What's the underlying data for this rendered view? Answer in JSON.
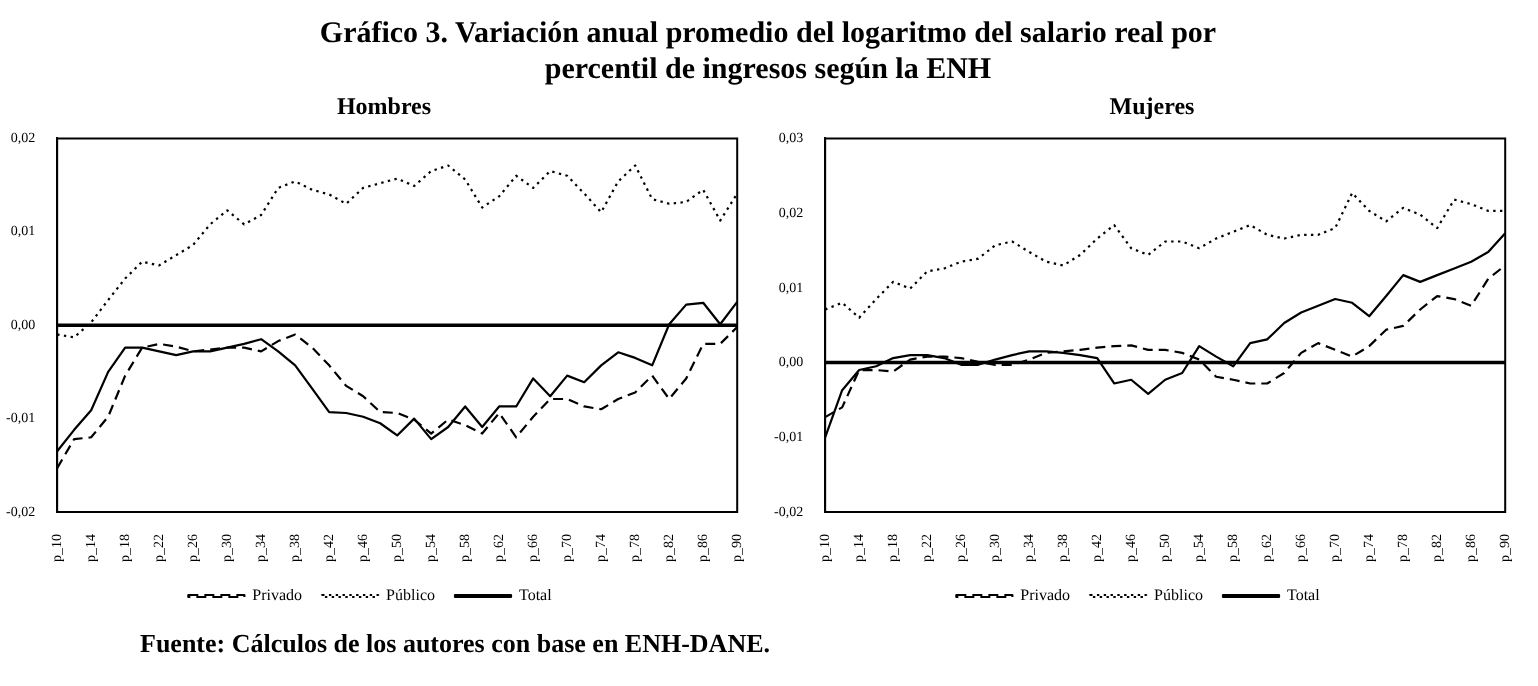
{
  "chart_data": [
    {
      "type": "line",
      "title": "Gráfico 3. Variación anual promedio del logaritmo del salario real por percentil de ingresos según la ENH",
      "subtitle": "Hombres",
      "categories": [
        "p_10",
        null,
        "p_14",
        null,
        "p_18",
        null,
        "p_22",
        null,
        "p_26",
        null,
        "p_30",
        null,
        "p_34",
        null,
        "p_38",
        null,
        "p_42",
        null,
        "p_46",
        null,
        "p_50",
        null,
        "p_54",
        null,
        "p_58",
        null,
        "p_62",
        null,
        "p_66",
        null,
        "p_70",
        null,
        "p_74",
        null,
        "p_78",
        null,
        "p_82",
        null,
        "p_86",
        null,
        "p_90"
      ],
      "series": [
        {
          "name": "Privado",
          "color": "#000000",
          "line_style": "dashed",
          "values": [
            -0.0153,
            -0.0122,
            -0.012,
            -0.0098,
            -0.0054,
            -0.0024,
            -0.002,
            -0.0023,
            -0.0028,
            -0.0026,
            -0.0024,
            -0.0024,
            -0.0028,
            -0.0017,
            -0.001,
            -0.0024,
            -0.0043,
            -0.0065,
            -0.0076,
            -0.0093,
            -0.0094,
            -0.0101,
            -0.0116,
            -0.0101,
            -0.0107,
            -0.0116,
            -0.0094,
            -0.012,
            -0.0098,
            -0.0079,
            -0.0079,
            -0.0087,
            -0.009,
            -0.0079,
            -0.0072,
            -0.0054,
            -0.0079,
            -0.0057,
            -0.002,
            -0.002,
            -0.0002
          ]
        },
        {
          "name": "Público",
          "color": "#000000",
          "line_style": "dotted",
          "values": [
            -0.001,
            -0.0013,
            0.0003,
            0.0027,
            0.005,
            0.0068,
            0.0064,
            0.0075,
            0.0086,
            0.0108,
            0.0123,
            0.0108,
            0.0118,
            0.0147,
            0.0154,
            0.0145,
            0.014,
            0.013,
            0.0147,
            0.0152,
            0.0157,
            0.0149,
            0.0165,
            0.0171,
            0.0156,
            0.0126,
            0.0138,
            0.016,
            0.0147,
            0.0165,
            0.016,
            0.0141,
            0.0121,
            0.0154,
            0.0171,
            0.0135,
            0.013,
            0.0132,
            0.0145,
            0.0112,
            0.0141
          ]
        },
        {
          "name": "Total",
          "color": "#000000",
          "line_style": "solid",
          "values": [
            -0.0135,
            -0.0112,
            -0.0091,
            -0.005,
            -0.0024,
            -0.0024,
            -0.0028,
            -0.0032,
            -0.0028,
            -0.0028,
            -0.0024,
            -0.002,
            -0.0015,
            -0.0028,
            -0.0043,
            -0.0068,
            -0.0093,
            -0.0094,
            -0.0098,
            -0.0105,
            -0.0118,
            -0.01,
            -0.0122,
            -0.0109,
            -0.0087,
            -0.0109,
            -0.0087,
            -0.0087,
            -0.0057,
            -0.0076,
            -0.0054,
            -0.0061,
            -0.0043,
            -0.0029,
            -0.0035,
            -0.0043,
            0.0001,
            0.0022,
            0.0024,
            0.0001,
            0.0025
          ]
        }
      ],
      "ylim": [
        -0.02,
        0.02
      ],
      "yticks": [
        {
          "value": -0.02,
          "label": "-0,02"
        },
        {
          "value": -0.01,
          "label": "-0,01"
        },
        {
          "value": 0,
          "label": "0,00"
        },
        {
          "value": 0.01,
          "label": "0,01"
        },
        {
          "value": 0.02,
          "label": "0,02"
        }
      ],
      "ref_lines": [
        {
          "axis": "y",
          "value": 0,
          "color": "#000000"
        }
      ],
      "legend": "bottom"
    },
    {
      "type": "line",
      "subtitle": "Mujeres",
      "categories": [
        "p_10",
        null,
        "p_14",
        null,
        "p_18",
        null,
        "p_22",
        null,
        "p_26",
        null,
        "p_30",
        null,
        "p_34",
        null,
        "p_38",
        null,
        "p_42",
        null,
        "p_46",
        null,
        "p_50",
        null,
        "p_54",
        null,
        "p_58",
        null,
        "p_62",
        null,
        "p_66",
        null,
        "p_70",
        null,
        "p_74",
        null,
        "p_78",
        null,
        "p_82",
        null,
        "p_86",
        null,
        "p_90"
      ],
      "series": [
        {
          "name": "Privado",
          "color": "#000000",
          "line_style": "dashed",
          "values": [
            -0.0073,
            -0.006,
            -0.001,
            -0.001,
            -0.0012,
            0.0004,
            0.0008,
            0.0008,
            0.0006,
            0.0001,
            -0.0003,
            -0.0003,
            0.0004,
            0.0013,
            0.0015,
            0.0017,
            0.002,
            0.0022,
            0.0023,
            0.0017,
            0.0017,
            0.0013,
            0.0004,
            -0.0019,
            -0.0023,
            -0.0028,
            -0.0028,
            -0.0014,
            0.0013,
            0.0026,
            0.0017,
            0.0008,
            0.0022,
            0.0044,
            0.0049,
            0.0071,
            0.0089,
            0.0085,
            0.0076,
            0.0112,
            0.013
          ]
        },
        {
          "name": "Público",
          "color": "#000000",
          "line_style": "dotted",
          "values": [
            0.0071,
            0.008,
            0.006,
            0.0085,
            0.0108,
            0.0099,
            0.0122,
            0.0126,
            0.0135,
            0.0139,
            0.0157,
            0.0162,
            0.0148,
            0.0135,
            0.013,
            0.0144,
            0.0166,
            0.0184,
            0.0153,
            0.0144,
            0.0162,
            0.0162,
            0.0153,
            0.0166,
            0.0175,
            0.0184,
            0.0171,
            0.0166,
            0.0171,
            0.0171,
            0.018,
            0.0227,
            0.0203,
            0.0189,
            0.0207,
            0.0198,
            0.018,
            0.0218,
            0.0212,
            0.0203,
            0.0203
          ]
        },
        {
          "name": "Total",
          "color": "#000000",
          "line_style": "solid",
          "values": [
            -0.01,
            -0.0037,
            -0.001,
            -0.0005,
            0.0006,
            0.001,
            0.001,
            0.0006,
            -0.0003,
            -0.0003,
            0.0004,
            0.001,
            0.0015,
            0.0015,
            0.0013,
            0.001,
            0.0006,
            -0.0028,
            -0.0023,
            -0.0042,
            -0.0023,
            -0.0014,
            0.0022,
            0.0008,
            -0.0005,
            0.0026,
            0.0031,
            0.0053,
            0.0067,
            0.0076,
            0.0085,
            0.008,
            0.0062,
            0.0089,
            0.0117,
            0.0108,
            0.0117,
            0.0126,
            0.0135,
            0.0148,
            0.0173
          ]
        }
      ],
      "ylim": [
        -0.02,
        0.03
      ],
      "yticks": [
        {
          "value": -0.02,
          "label": "-0,02"
        },
        {
          "value": -0.01,
          "label": "-0,01"
        },
        {
          "value": 0,
          "label": "0,00"
        },
        {
          "value": 0.01,
          "label": "0,01"
        },
        {
          "value": 0.02,
          "label": "0,02"
        },
        {
          "value": 0.03,
          "label": "0,03"
        }
      ],
      "ref_lines": [
        {
          "axis": "y",
          "value": 0,
          "color": "#000000"
        }
      ],
      "legend": "bottom",
      "annotations": [
        "Fuente: Cálculos de los autores con base en ENH-DANE."
      ]
    }
  ]
}
